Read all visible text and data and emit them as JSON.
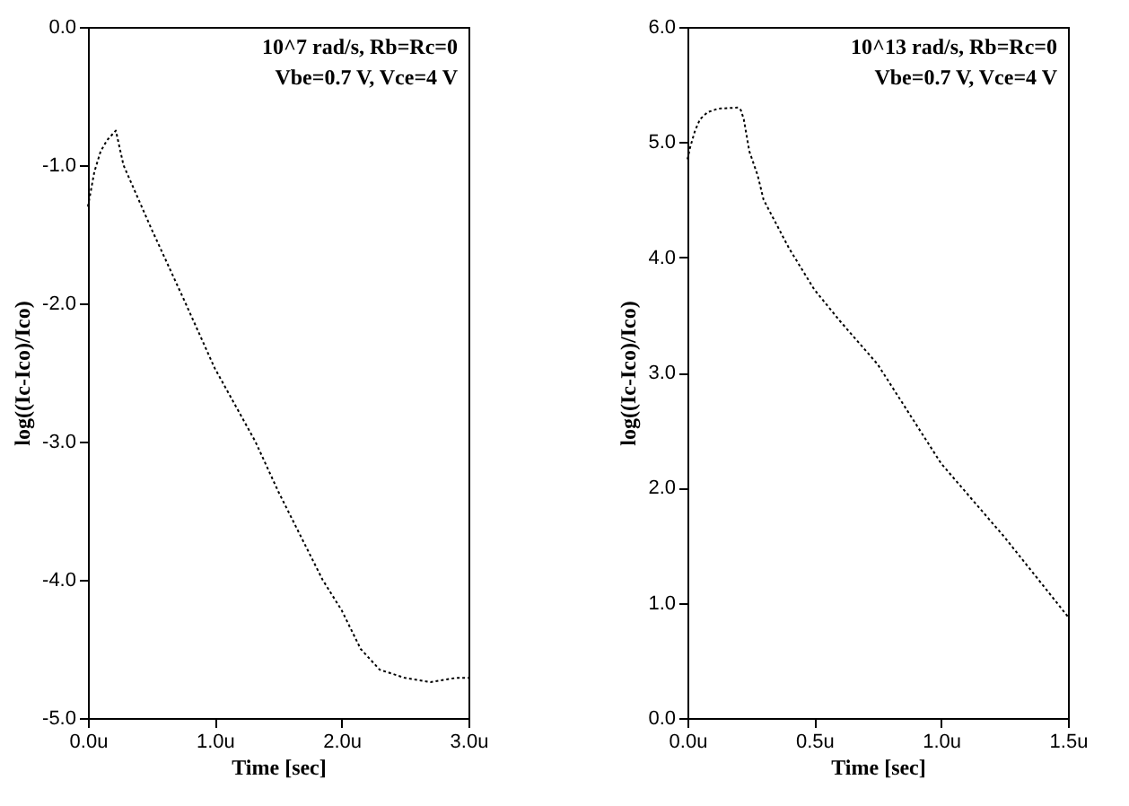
{
  "chart_data": [
    {
      "type": "line",
      "xlabel": "Time  [sec]",
      "ylabel": "log((Ic-Ico)/Ico)",
      "color": "#000000",
      "grid": false,
      "annotations": [
        "10^7 rad/s, Rb=Rc=0",
        "Vbe=0.7 V, Vce=4 V"
      ],
      "x": [
        0,
        0.05,
        0.1,
        0.15,
        0.22,
        0.28,
        0.5,
        0.77,
        1.0,
        1.32,
        1.5,
        1.85,
        2.0,
        2.15,
        2.3,
        2.5,
        2.7,
        2.9,
        3.0
      ],
      "line_style": "dotted",
      "values": [
        -1.3,
        -1.05,
        -0.9,
        -0.82,
        -0.75,
        -1.0,
        -1.46,
        -2.0,
        -2.47,
        -3.0,
        -3.36,
        -4.0,
        -4.22,
        -4.5,
        -4.65,
        -4.71,
        -4.74,
        -4.71,
        -4.71
      ],
      "xlim": [
        0,
        3
      ],
      "xticks": [
        {
          "value": 0,
          "label": "0.0u"
        },
        {
          "value": 1,
          "label": "1.0u"
        },
        {
          "value": 2,
          "label": "2.0u"
        },
        {
          "value": 3,
          "label": "3.0u"
        }
      ],
      "ylim": [
        -5,
        0
      ],
      "yticks": [
        {
          "value": -5,
          "label": "-5.0"
        },
        {
          "value": -4,
          "label": "-4.0"
        },
        {
          "value": -3,
          "label": "-3.0"
        },
        {
          "value": -2,
          "label": "-2.0"
        },
        {
          "value": -1,
          "label": "-1.0"
        },
        {
          "value": 0,
          "label": "0.0"
        }
      ]
    },
    {
      "type": "line",
      "xlabel": "Time  [sec]",
      "ylabel": "log((Ic-Ico)/Ico)",
      "color": "#000000",
      "grid": false,
      "annotations": [
        "10^13 rad/s, Rb=Rc=0",
        "Vbe=0.7 V,  Vce=4 V"
      ],
      "x": [
        0,
        0.01,
        0.03,
        0.05,
        0.08,
        0.12,
        0.2,
        0.21,
        0.222,
        0.244,
        0.277,
        0.3,
        0.4,
        0.5,
        0.6,
        0.75,
        1.0,
        1.25,
        1.5
      ],
      "values": [
        4.85,
        4.95,
        5.1,
        5.2,
        5.26,
        5.29,
        5.3,
        5.28,
        5.2,
        4.92,
        4.71,
        4.5,
        4.08,
        3.72,
        3.45,
        3.07,
        2.21,
        1.57,
        0.88
      ],
      "line_style": "dotted",
      "xlim": [
        0,
        1.5
      ],
      "xticks": [
        {
          "value": 0,
          "label": "0.0u"
        },
        {
          "value": 0.5,
          "label": "0.5u"
        },
        {
          "value": 1,
          "label": "1.0u"
        },
        {
          "value": 1.5,
          "label": "1.5u"
        }
      ],
      "ylim": [
        0,
        6
      ],
      "yticks": [
        {
          "value": 0,
          "label": "0.0"
        },
        {
          "value": 1,
          "label": "1.0"
        },
        {
          "value": 2,
          "label": "2.0"
        },
        {
          "value": 3,
          "label": "3.0"
        },
        {
          "value": 4,
          "label": "4.0"
        },
        {
          "value": 5,
          "label": "5.0"
        },
        {
          "value": 6,
          "label": "6.0"
        }
      ]
    }
  ]
}
